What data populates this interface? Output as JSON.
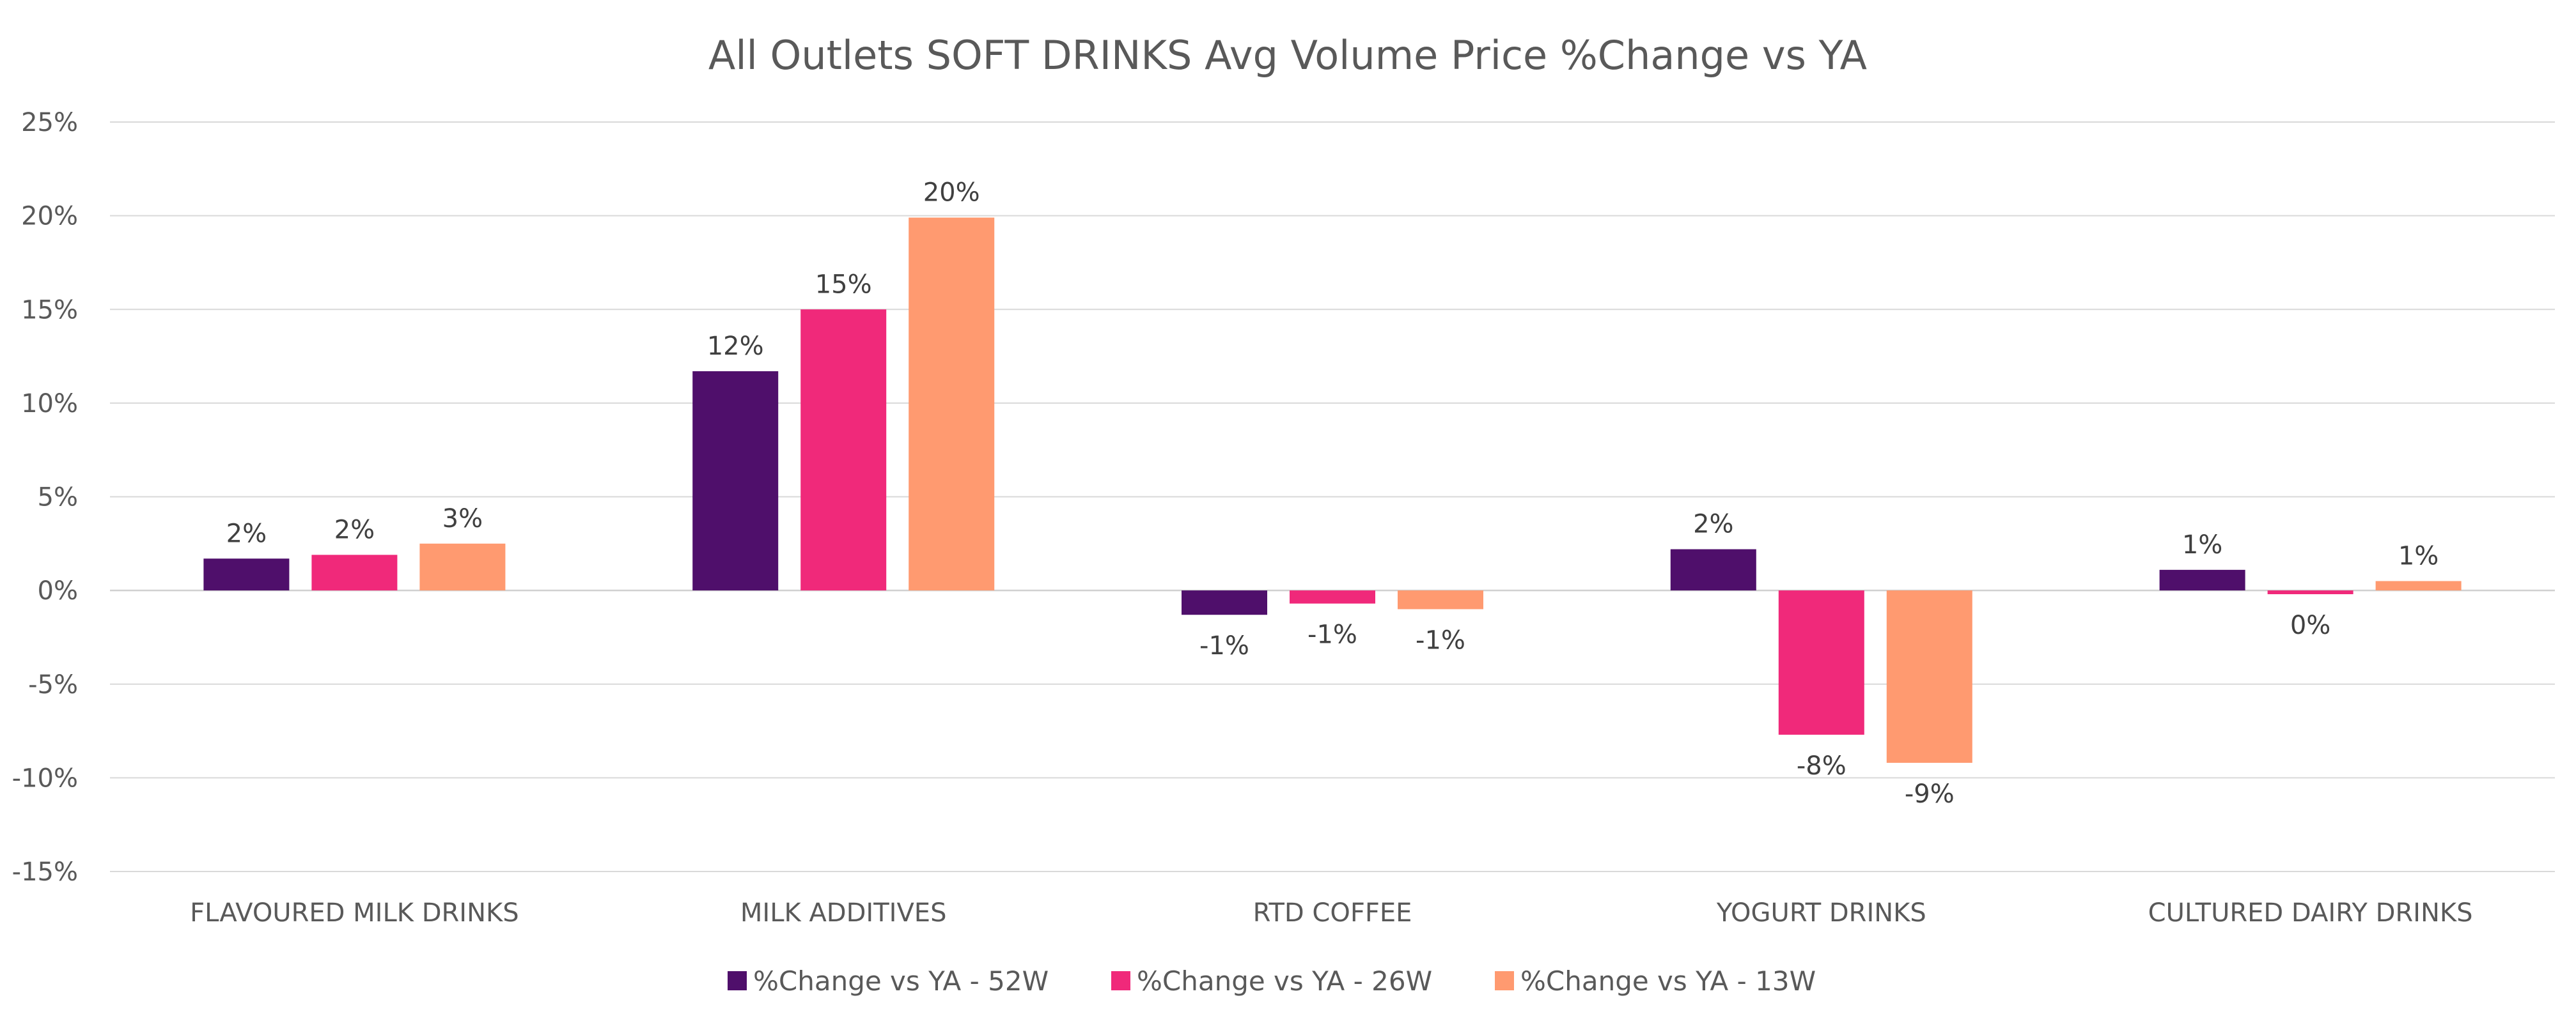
{
  "chart_data": {
    "type": "bar",
    "title": "All Outlets SOFT DRINKS Avg Volume Price %Change vs YA",
    "xlabel": "",
    "ylabel": "",
    "ylim": [
      -15,
      25
    ],
    "yticks": [
      25,
      20,
      15,
      10,
      5,
      0,
      -5,
      -10,
      -15
    ],
    "ytick_labels": [
      "25%",
      "20%",
      "15%",
      "10%",
      "5%",
      "0%",
      "-5%",
      "-10%",
      "-15%"
    ],
    "grid": true,
    "legend_position": "bottom",
    "categories": [
      "FLAVOURED MILK DRINKS",
      "MILK ADDITIVES",
      "RTD COFFEE",
      "YOGURT DRINKS",
      "CULTURED DAIRY DRINKS"
    ],
    "series": [
      {
        "name": "%Change vs YA -  52W",
        "color": "#4f0f6b",
        "values": [
          1.7,
          11.7,
          -1.3,
          2.2,
          1.1
        ],
        "labels": [
          "2%",
          "12%",
          "-1%",
          "2%",
          "1%"
        ]
      },
      {
        "name": "%Change vs YA -  26W",
        "color": "#f0297a",
        "values": [
          1.9,
          15.0,
          -0.7,
          -7.7,
          -0.2
        ],
        "labels": [
          "2%",
          "15%",
          "-1%",
          "-8%",
          "0%"
        ]
      },
      {
        "name": "%Change vs YA -  13W",
        "color": "#ff9a70",
        "values": [
          2.5,
          19.9,
          -1.0,
          -9.2,
          0.5
        ],
        "labels": [
          "3%",
          "20%",
          "-1%",
          "-9%",
          "1%"
        ]
      }
    ]
  }
}
